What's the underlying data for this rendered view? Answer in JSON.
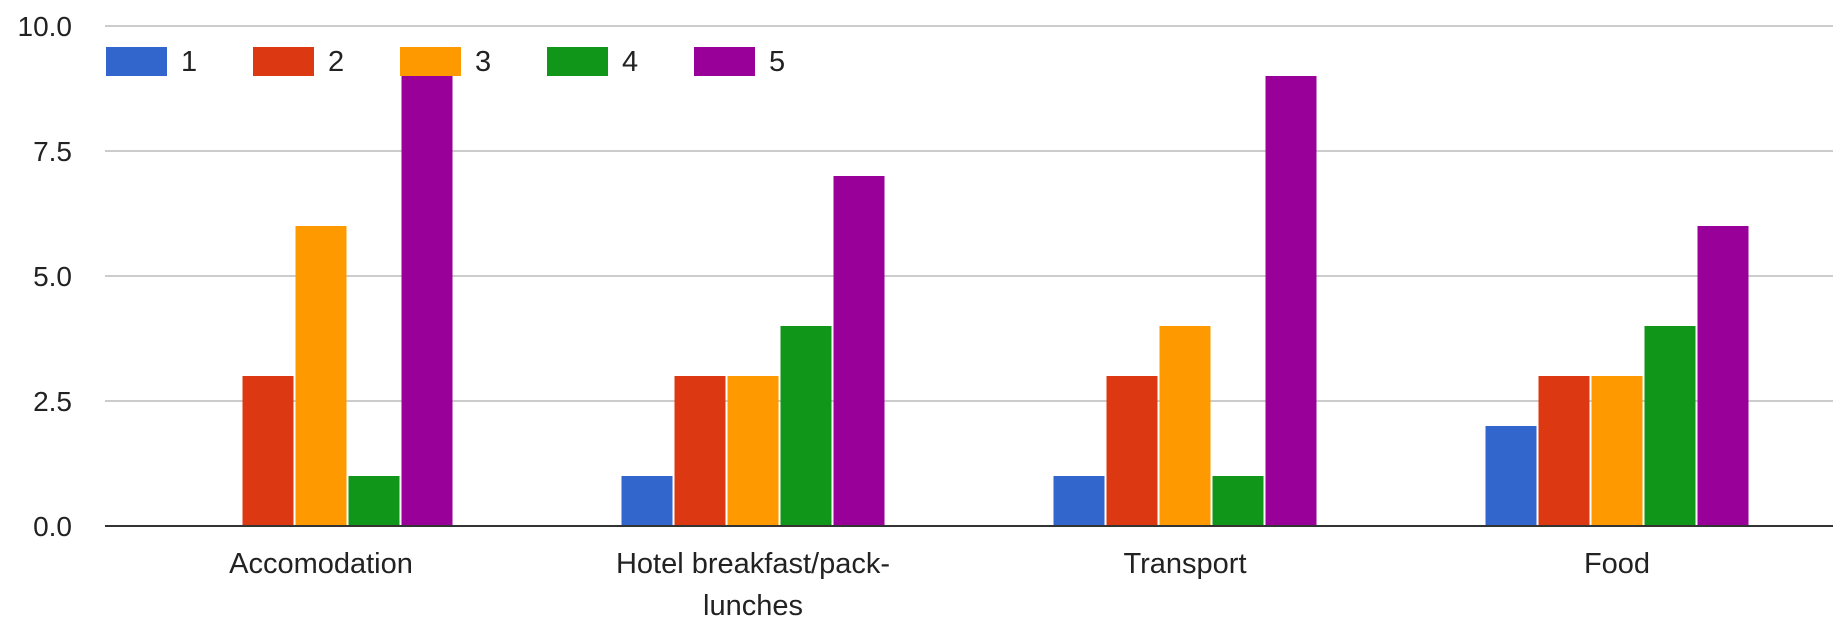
{
  "chart_data": {
    "type": "bar",
    "categories": [
      "Accomodation",
      "Hotel breakfast/pack-lunches",
      "Transport",
      "Food"
    ],
    "category_lines": [
      [
        "Accomodation"
      ],
      [
        "Hotel breakfast/pack-",
        "lunches"
      ],
      [
        "Transport"
      ],
      [
        "Food"
      ]
    ],
    "series": [
      {
        "name": "1",
        "color": "#3366cc",
        "values": [
          0,
          1,
          1,
          2
        ]
      },
      {
        "name": "2",
        "color": "#dc3912",
        "values": [
          3,
          3,
          3,
          3
        ]
      },
      {
        "name": "3",
        "color": "#ff9900",
        "values": [
          6,
          3,
          4,
          3
        ]
      },
      {
        "name": "4",
        "color": "#109618",
        "values": [
          1,
          4,
          1,
          4
        ]
      },
      {
        "name": "5",
        "color": "#990099",
        "values": [
          9,
          7,
          9,
          6
        ]
      }
    ],
    "y_ticks": [
      "0.0",
      "2.5",
      "5.0",
      "7.5",
      "10.0"
    ],
    "ylim": [
      0,
      10
    ],
    "grid": true,
    "legend_position": "top-left",
    "xlabel": "",
    "ylabel": ""
  }
}
